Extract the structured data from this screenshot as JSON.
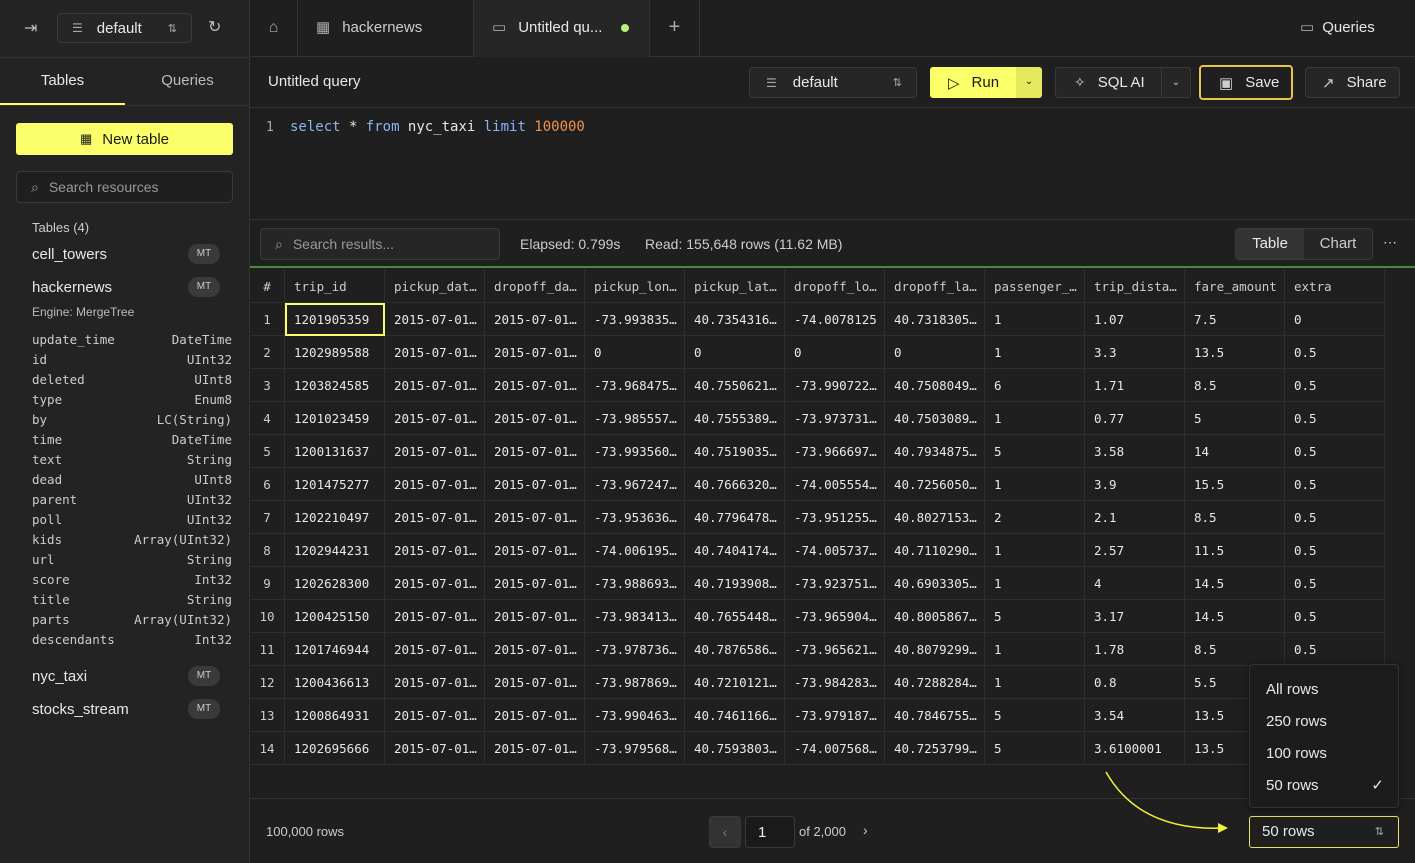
{
  "sidebar": {
    "database": "default",
    "tabs": [
      "Tables",
      "Queries"
    ],
    "new_table": "New table",
    "search_placeholder": "Search resources",
    "tables_heading": "Tables (4)",
    "tables": [
      {
        "name": "cell_towers",
        "badge": "MT"
      },
      {
        "name": "hackernews",
        "badge": "MT",
        "engine": "Engine: MergeTree",
        "columns": [
          [
            "update_time",
            "DateTime"
          ],
          [
            "id",
            "UInt32"
          ],
          [
            "deleted",
            "UInt8"
          ],
          [
            "type",
            "Enum8"
          ],
          [
            "by",
            "LC(String)"
          ],
          [
            "time",
            "DateTime"
          ],
          [
            "text",
            "String"
          ],
          [
            "dead",
            "UInt8"
          ],
          [
            "parent",
            "UInt32"
          ],
          [
            "poll",
            "UInt32"
          ],
          [
            "kids",
            "Array(UInt32)"
          ],
          [
            "url",
            "String"
          ],
          [
            "score",
            "Int32"
          ],
          [
            "title",
            "String"
          ],
          [
            "parts",
            "Array(UInt32)"
          ],
          [
            "descendants",
            "Int32"
          ]
        ]
      },
      {
        "name": "nyc_taxi",
        "badge": "MT"
      },
      {
        "name": "stocks_stream",
        "badge": "MT"
      }
    ]
  },
  "tabs": [
    "hackernews",
    "Untitled qu..."
  ],
  "queries_button": "Queries",
  "toolbar": {
    "title": "Untitled query",
    "database": "default",
    "run": "Run",
    "sql_ai": "SQL AI",
    "save": "Save",
    "share": "Share"
  },
  "editor": {
    "line_number": "1",
    "tokens": [
      {
        "text": "select",
        "color": "#8ab4f8"
      },
      {
        "text": "*",
        "color": "#e6e6e6"
      },
      {
        "text": "from",
        "color": "#8ab4f8"
      },
      {
        "text": "nyc_taxi",
        "color": "#e6e6e6"
      },
      {
        "text": "limit",
        "color": "#8ab4f8"
      },
      {
        "text": "100000",
        "color": "#f0934a"
      }
    ]
  },
  "results": {
    "search_placeholder": "Search results...",
    "elapsed": "Elapsed: 0.799s",
    "read": "Read: 155,648 rows (11.62 MB)",
    "views": [
      "Table",
      "Chart"
    ],
    "columns": [
      "#",
      "trip_id",
      "pickup_dat…",
      "dropoff_da…",
      "pickup_lon…",
      "pickup_lat…",
      "dropoff_lo…",
      "dropoff_la…",
      "passenger_…",
      "trip_dista…",
      "fare_amount",
      "extra"
    ],
    "rows": [
      [
        "1",
        "1201905359",
        "2015-07-01…",
        "2015-07-01…",
        "-73.993835…",
        "40.7354316…",
        "-74.0078125",
        "40.7318305…",
        "1",
        "1.07",
        "7.5",
        "0"
      ],
      [
        "2",
        "1202989588",
        "2015-07-01…",
        "2015-07-01…",
        "0",
        "0",
        "0",
        "0",
        "1",
        "3.3",
        "13.5",
        "0.5"
      ],
      [
        "3",
        "1203824585",
        "2015-07-01…",
        "2015-07-01…",
        "-73.968475…",
        "40.7550621…",
        "-73.990722…",
        "40.7508049…",
        "6",
        "1.71",
        "8.5",
        "0.5"
      ],
      [
        "4",
        "1201023459",
        "2015-07-01…",
        "2015-07-01…",
        "-73.985557…",
        "40.7555389…",
        "-73.973731…",
        "40.7503089…",
        "1",
        "0.77",
        "5",
        "0.5"
      ],
      [
        "5",
        "1200131637",
        "2015-07-01…",
        "2015-07-01…",
        "-73.993560…",
        "40.7519035…",
        "-73.966697…",
        "40.7934875…",
        "5",
        "3.58",
        "14",
        "0.5"
      ],
      [
        "6",
        "1201475277",
        "2015-07-01…",
        "2015-07-01…",
        "-73.967247…",
        "40.7666320…",
        "-74.005554…",
        "40.7256050…",
        "1",
        "3.9",
        "15.5",
        "0.5"
      ],
      [
        "7",
        "1202210497",
        "2015-07-01…",
        "2015-07-01…",
        "-73.953636…",
        "40.7796478…",
        "-73.951255…",
        "40.8027153…",
        "2",
        "2.1",
        "8.5",
        "0.5"
      ],
      [
        "8",
        "1202944231",
        "2015-07-01…",
        "2015-07-01…",
        "-74.006195…",
        "40.7404174…",
        "-74.005737…",
        "40.7110290…",
        "1",
        "2.57",
        "11.5",
        "0.5"
      ],
      [
        "9",
        "1202628300",
        "2015-07-01…",
        "2015-07-01…",
        "-73.988693…",
        "40.7193908…",
        "-73.923751…",
        "40.6903305…",
        "1",
        "4",
        "14.5",
        "0.5"
      ],
      [
        "10",
        "1200425150",
        "2015-07-01…",
        "2015-07-01…",
        "-73.983413…",
        "40.7655448…",
        "-73.965904…",
        "40.8005867…",
        "5",
        "3.17",
        "14.5",
        "0.5"
      ],
      [
        "11",
        "1201746944",
        "2015-07-01…",
        "2015-07-01…",
        "-73.978736…",
        "40.7876586…",
        "-73.965621…",
        "40.8079299…",
        "1",
        "1.78",
        "8.5",
        "0.5"
      ],
      [
        "12",
        "1200436613",
        "2015-07-01…",
        "2015-07-01…",
        "-73.987869…",
        "40.7210121…",
        "-73.984283…",
        "40.7288284…",
        "1",
        "0.8",
        "5.5"
      ],
      [
        "13",
        "1200864931",
        "2015-07-01…",
        "2015-07-01…",
        "-73.990463…",
        "40.7461166…",
        "-73.979187…",
        "40.7846755…",
        "5",
        "3.54",
        "13.5"
      ],
      [
        "14",
        "1202695666",
        "2015-07-01…",
        "2015-07-01…",
        "-73.979568…",
        "40.7593803…",
        "-74.007568…",
        "40.7253799…",
        "5",
        "3.6100001",
        "13.5"
      ]
    ]
  },
  "footer": {
    "row_count": "100,000 rows",
    "page": "1",
    "page_total": "of 2,000",
    "rows_select": "50 rows"
  },
  "rows_menu": {
    "options": [
      "All rows",
      "250 rows",
      "100 rows",
      "50 rows"
    ],
    "selected": 3
  }
}
